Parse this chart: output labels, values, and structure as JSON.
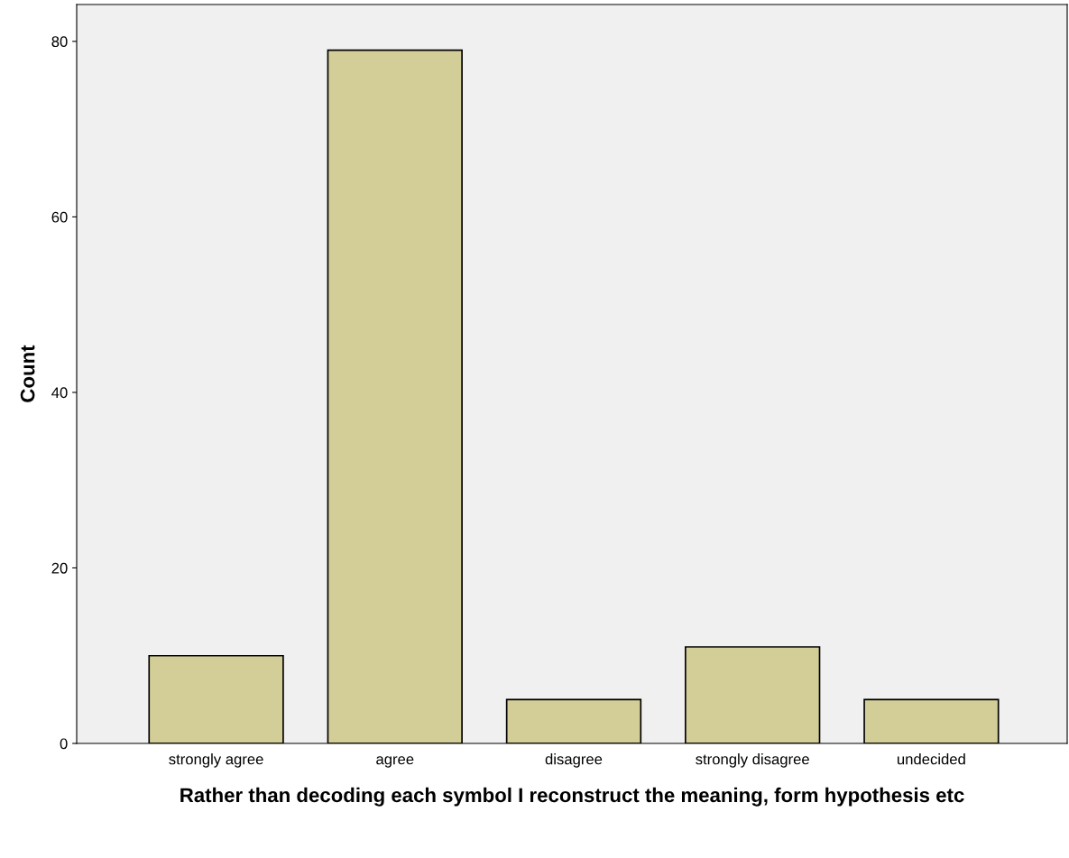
{
  "chart_data": {
    "type": "bar",
    "categories": [
      "strongly agree",
      "agree",
      "disagree",
      "strongly disagree",
      "undecided"
    ],
    "values": [
      10,
      79,
      5,
      11,
      5
    ],
    "color": "#d3ce97",
    "xlabel": "Rather than decoding each symbol I reconstruct the meaning, form hypothesis etc",
    "ylabel": "Count",
    "ylim": [
      0,
      84.2
    ],
    "yticks": [
      0,
      20,
      40,
      60,
      80
    ],
    "grid": false,
    "legend": false
  }
}
